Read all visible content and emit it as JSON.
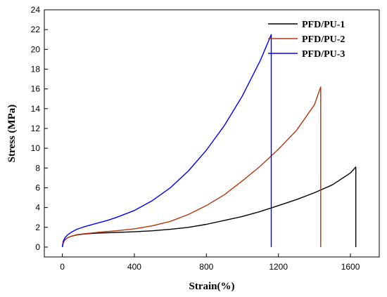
{
  "chart_data": {
    "type": "line",
    "title": "",
    "xlabel": "Strain(%)",
    "ylabel": "Stress (MPa)",
    "xlim": [
      -100,
      1760
    ],
    "ylim": [
      -1,
      24
    ],
    "xticks": [
      0,
      400,
      800,
      1200,
      1600
    ],
    "yticks": [
      0,
      2,
      4,
      6,
      8,
      10,
      12,
      14,
      16,
      18,
      20,
      22,
      24
    ],
    "grid": false,
    "legend_position": "top-right",
    "series": [
      {
        "name": "PFD/PU-1",
        "color": "#000000",
        "x": [
          0,
          5,
          15,
          30,
          50,
          80,
          120,
          160,
          200,
          250,
          300,
          400,
          500,
          600,
          700,
          800,
          900,
          1000,
          1100,
          1200,
          1300,
          1400,
          1500,
          1600,
          1630,
          1630
        ],
        "y": [
          0,
          0.45,
          0.75,
          0.95,
          1.1,
          1.22,
          1.32,
          1.38,
          1.42,
          1.45,
          1.48,
          1.55,
          1.65,
          1.8,
          2.0,
          2.3,
          2.7,
          3.1,
          3.6,
          4.2,
          4.8,
          5.5,
          6.3,
          7.5,
          8.1,
          0
        ]
      },
      {
        "name": "PFD/PU-2",
        "color": "#b5340e",
        "x": [
          0,
          5,
          15,
          30,
          50,
          80,
          120,
          160,
          200,
          250,
          300,
          400,
          500,
          600,
          700,
          800,
          900,
          1000,
          1100,
          1200,
          1300,
          1400,
          1435,
          1435
        ],
        "y": [
          0,
          0.45,
          0.75,
          0.95,
          1.1,
          1.25,
          1.35,
          1.42,
          1.5,
          1.58,
          1.65,
          1.85,
          2.15,
          2.6,
          3.3,
          4.2,
          5.3,
          6.7,
          8.2,
          9.9,
          11.8,
          14.4,
          16.2,
          0
        ]
      },
      {
        "name": "PFD/PU-3",
        "color": "#0000ff",
        "x": [
          0,
          5,
          15,
          30,
          50,
          80,
          120,
          160,
          200,
          250,
          300,
          400,
          500,
          600,
          700,
          800,
          900,
          1000,
          1100,
          1160,
          1160
        ],
        "y": [
          0,
          0.6,
          0.95,
          1.25,
          1.5,
          1.8,
          2.05,
          2.25,
          2.45,
          2.7,
          3.0,
          3.7,
          4.7,
          6.0,
          7.7,
          9.8,
          12.3,
          15.3,
          18.9,
          21.5,
          0
        ]
      }
    ]
  }
}
